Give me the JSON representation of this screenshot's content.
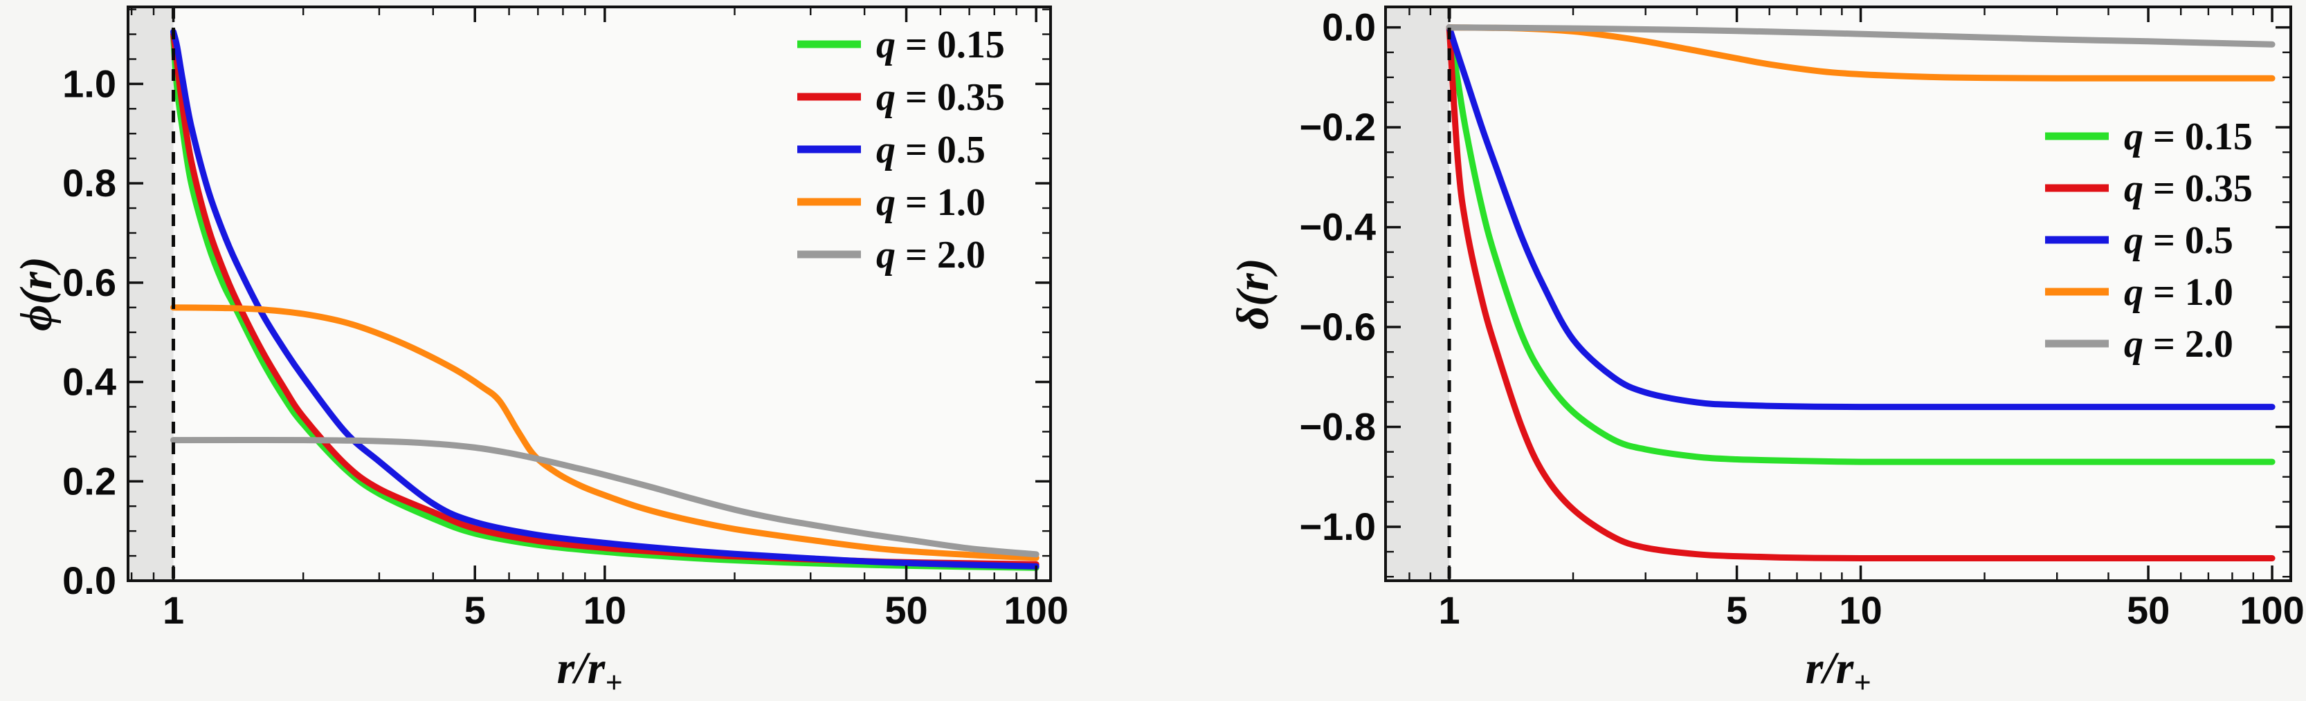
{
  "figure": {
    "background": "#f6f6f4",
    "panel_background": "#fafaf9",
    "horizon_band_color": "#e4e4e3",
    "frame_color": "#111111",
    "text_color": "#0a0a0a",
    "horizon_line_style": "dashed"
  },
  "chart_data": [
    {
      "type": "line",
      "xscale": "log",
      "title": "",
      "xlabel": "r/r+",
      "xlabel_main": "r/r",
      "xlabel_sub": "+",
      "ylabel": "ϕ(r)",
      "xlim": [
        0.785,
        108
      ],
      "ylim": [
        0,
        1.155
      ],
      "grid": false,
      "legend_position": "upper-right",
      "horizon_x": 1,
      "shaded_band": [
        0.785,
        1
      ],
      "x_ticks": [
        {
          "v": 1,
          "label": "1"
        },
        {
          "v": 5,
          "label": "5"
        },
        {
          "v": 10,
          "label": "10"
        },
        {
          "v": 50,
          "label": "50"
        },
        {
          "v": 100,
          "label": "100"
        }
      ],
      "y_ticks": [
        {
          "v": 0,
          "label": "0.0"
        },
        {
          "v": 0.2,
          "label": "0.2"
        },
        {
          "v": 0.4,
          "label": "0.4"
        },
        {
          "v": 0.6,
          "label": "0.6"
        },
        {
          "v": 0.8,
          "label": "0.8"
        },
        {
          "v": 1,
          "label": "1.0"
        }
      ],
      "x_minor_ticks": [
        0.8,
        0.9,
        2,
        3,
        4,
        6,
        7,
        8,
        9,
        20,
        30,
        40,
        60,
        70,
        80,
        90
      ],
      "y_minor_step": 0.05,
      "series": [
        {
          "name": "q = 0.15",
          "name_var": "q",
          "name_rest": " = 0.15",
          "color": "#2ae02a",
          "x": [
            1,
            1.02,
            1.05,
            1.1,
            1.2,
            1.3,
            1.4,
            1.6,
            1.8,
            2,
            2.5,
            3,
            4,
            5,
            7,
            10,
            15,
            20,
            30,
            45,
            70,
            100
          ],
          "y": [
            1.095,
            0.99,
            0.91,
            0.8,
            0.68,
            0.6,
            0.545,
            0.445,
            0.37,
            0.315,
            0.225,
            0.175,
            0.125,
            0.095,
            0.072,
            0.058,
            0.047,
            0.041,
            0.035,
            0.031,
            0.028,
            0.026
          ]
        },
        {
          "name": "q = 0.35",
          "name_var": "q",
          "name_rest": " = 0.35",
          "color": "#e01117",
          "x": [
            1,
            1.02,
            1.05,
            1.1,
            1.2,
            1.3,
            1.4,
            1.6,
            1.8,
            2,
            2.5,
            3,
            4,
            5,
            7,
            10,
            15,
            20,
            30,
            45,
            70,
            100
          ],
          "y": [
            1.1,
            1.04,
            0.955,
            0.845,
            0.715,
            0.63,
            0.565,
            0.465,
            0.39,
            0.33,
            0.235,
            0.185,
            0.138,
            0.105,
            0.08,
            0.066,
            0.055,
            0.049,
            0.043,
            0.038,
            0.035,
            0.033
          ]
        },
        {
          "name": "q = 0.5",
          "name_var": "q",
          "name_rest": " = 0.5",
          "color": "#1717e0",
          "x": [
            1,
            1.02,
            1.05,
            1.1,
            1.2,
            1.3,
            1.4,
            1.6,
            1.8,
            2,
            2.5,
            3,
            4,
            5,
            7,
            10,
            15,
            20,
            30,
            45,
            70,
            100
          ],
          "y": [
            1.105,
            1.075,
            1.01,
            0.915,
            0.79,
            0.705,
            0.64,
            0.54,
            0.468,
            0.41,
            0.3,
            0.24,
            0.155,
            0.118,
            0.092,
            0.076,
            0.062,
            0.054,
            0.045,
            0.037,
            0.032,
            0.029
          ]
        },
        {
          "name": "q = 1.0",
          "name_var": "q",
          "name_rest": " = 1.0",
          "color": "#ff870f",
          "x": [
            1,
            1.3,
            1.6,
            2,
            2.5,
            3,
            3.6,
            4.5,
            5.2,
            5.7,
            6.3,
            6.9,
            7.8,
            8.85,
            10,
            12,
            15,
            20,
            30,
            45,
            70,
            100
          ],
          "y": [
            0.55,
            0.549,
            0.546,
            0.537,
            0.52,
            0.497,
            0.468,
            0.425,
            0.39,
            0.362,
            0.3,
            0.25,
            0.215,
            0.19,
            0.172,
            0.148,
            0.126,
            0.104,
            0.082,
            0.063,
            0.052,
            0.046
          ]
        },
        {
          "name": "q = 2.0",
          "name_var": "q",
          "name_rest": " = 2.0",
          "color": "#9a9a9a",
          "x": [
            1,
            2,
            3,
            4,
            5,
            6,
            7,
            8.5,
            10,
            13,
            16,
            20,
            25,
            30,
            40,
            50,
            70,
            100
          ],
          "y": [
            0.283,
            0.283,
            0.281,
            0.276,
            0.268,
            0.257,
            0.245,
            0.228,
            0.213,
            0.187,
            0.165,
            0.143,
            0.125,
            0.113,
            0.095,
            0.083,
            0.065,
            0.053
          ]
        }
      ]
    },
    {
      "type": "line",
      "xscale": "log",
      "title": "",
      "xlabel": "r/r+",
      "xlabel_main": "r/r",
      "xlabel_sub": "+",
      "ylabel": "δ(r)",
      "xlim": [
        0.7,
        111
      ],
      "ylim": [
        -1.108,
        0.041
      ],
      "grid": false,
      "legend_position": "right",
      "horizon_x": 1,
      "shaded_band": [
        0.7,
        1
      ],
      "x_ticks": [
        {
          "v": 1,
          "label": "1"
        },
        {
          "v": 5,
          "label": "5"
        },
        {
          "v": 10,
          "label": "10"
        },
        {
          "v": 50,
          "label": "50"
        },
        {
          "v": 100,
          "label": "100"
        }
      ],
      "y_ticks": [
        {
          "v": 0,
          "label": "0.0"
        },
        {
          "v": -0.2,
          "label": "−0.2"
        },
        {
          "v": -0.4,
          "label": "−0.4"
        },
        {
          "v": -0.6,
          "label": "−0.6"
        },
        {
          "v": -0.8,
          "label": "−0.8"
        },
        {
          "v": -1,
          "label": "−1.0"
        }
      ],
      "x_minor_ticks": [
        0.8,
        0.9,
        2,
        3,
        4,
        6,
        7,
        8,
        9,
        20,
        30,
        40,
        60,
        70,
        80,
        90
      ],
      "y_minor_step": 0.05,
      "series": [
        {
          "name": "q = 0.15",
          "name_var": "q",
          "name_rest": " = 0.15",
          "color": "#2ae02a",
          "x": [
            1,
            1.05,
            1.1,
            1.2,
            1.3,
            1.5,
            1.7,
            2,
            2.5,
            3,
            4,
            5,
            7,
            10,
            20,
            50,
            100
          ],
          "y": [
            0,
            -0.11,
            -0.21,
            -0.36,
            -0.465,
            -0.615,
            -0.7,
            -0.77,
            -0.825,
            -0.845,
            -0.86,
            -0.865,
            -0.868,
            -0.87,
            -0.87,
            -0.87,
            -0.87
          ]
        },
        {
          "name": "q = 0.35",
          "name_var": "q",
          "name_rest": " = 0.35",
          "color": "#e01117",
          "x": [
            1,
            1.05,
            1.1,
            1.2,
            1.3,
            1.5,
            1.7,
            2,
            2.5,
            3,
            4,
            5,
            7,
            10,
            20,
            50,
            100
          ],
          "y": [
            0,
            -0.27,
            -0.4,
            -0.545,
            -0.645,
            -0.8,
            -0.895,
            -0.965,
            -1.02,
            -1.042,
            -1.055,
            -1.059,
            -1.062,
            -1.063,
            -1.063,
            -1.063,
            -1.063
          ]
        },
        {
          "name": "q = 0.5",
          "name_var": "q",
          "name_rest": " = 0.5",
          "color": "#1717e0",
          "x": [
            1,
            1.05,
            1.1,
            1.2,
            1.3,
            1.5,
            1.7,
            2,
            2.5,
            3,
            4,
            5,
            7,
            10,
            20,
            50,
            100
          ],
          "y": [
            0,
            -0.055,
            -0.105,
            -0.2,
            -0.28,
            -0.42,
            -0.52,
            -0.625,
            -0.7,
            -0.731,
            -0.751,
            -0.756,
            -0.759,
            -0.76,
            -0.76,
            -0.76,
            -0.76
          ]
        },
        {
          "name": "q = 1.0",
          "name_var": "q",
          "name_rest": " = 1.0",
          "color": "#ff870f",
          "x": [
            1,
            1.5,
            2,
            2.5,
            3,
            4,
            5,
            6,
            8,
            10,
            13,
            16,
            20,
            30,
            50,
            100
          ],
          "y": [
            0,
            -0.002,
            -0.008,
            -0.018,
            -0.028,
            -0.047,
            -0.062,
            -0.074,
            -0.088,
            -0.094,
            -0.098,
            -0.1,
            -0.101,
            -0.102,
            -0.102,
            -0.102
          ]
        },
        {
          "name": "q = 2.0",
          "name_var": "q",
          "name_rest": " = 2.0",
          "color": "#9a9a9a",
          "x": [
            1,
            2,
            3,
            5,
            8,
            12,
            20,
            30,
            50,
            70,
            100
          ],
          "y": [
            0,
            -0.002,
            -0.004,
            -0.007,
            -0.011,
            -0.015,
            -0.02,
            -0.024,
            -0.028,
            -0.031,
            -0.034
          ]
        }
      ]
    }
  ]
}
